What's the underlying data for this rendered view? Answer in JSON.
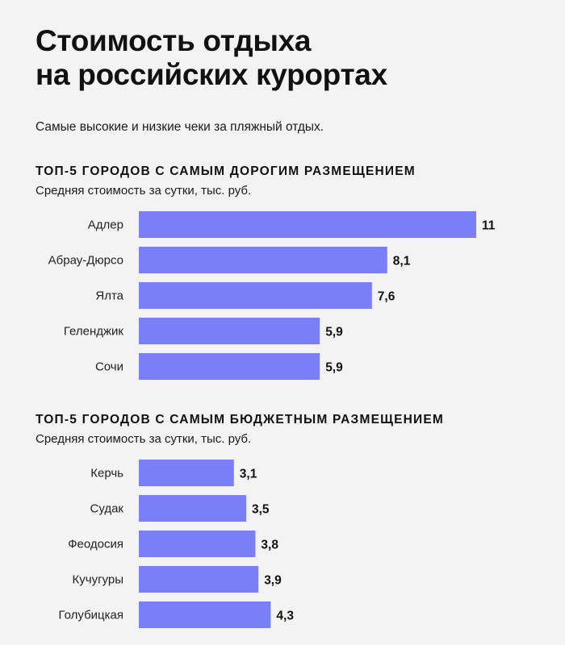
{
  "header": {
    "title_line1": "Стоимость отдыха",
    "title_line2": "на российских курортах",
    "subtitle": "Самые высокие и низкие чеки за пляжный отдых."
  },
  "colors": {
    "bar": "#7b7ff5",
    "background": "#f3f3f3",
    "text": "#111111"
  },
  "chart_data": [
    {
      "type": "bar",
      "orientation": "horizontal",
      "title": "ТОП-5 ГОРОДОВ С САМЫМ ДОРОГИМ РАЗМЕЩЕНИЕМ",
      "subtitle": "Средняя стоимость за сутки, тыс. руб.",
      "categories": [
        "Адлер",
        "Абрау-Дюрсо",
        "Ялта",
        "Геленджик",
        "Сочи"
      ],
      "values": [
        11,
        8.1,
        7.6,
        5.9,
        5.9
      ],
      "value_labels": [
        "11",
        "8,1",
        "7,6",
        "5,9",
        "5,9"
      ],
      "xlim": [
        0,
        11
      ]
    },
    {
      "type": "bar",
      "orientation": "horizontal",
      "title": "ТОП-5 ГОРОДОВ С САМЫМ БЮДЖЕТНЫМ РАЗМЕЩЕНИЕМ",
      "subtitle": "Средняя стоимость за сутки, тыс. руб.",
      "categories": [
        "Керчь",
        "Судак",
        "Феодосия",
        "Кучугуры",
        "Голубицкая"
      ],
      "values": [
        3.1,
        3.5,
        3.8,
        3.9,
        4.3
      ],
      "value_labels": [
        "3,1",
        "3,5",
        "3,8",
        "3,9",
        "4,3"
      ],
      "xlim": [
        0,
        11
      ]
    }
  ]
}
